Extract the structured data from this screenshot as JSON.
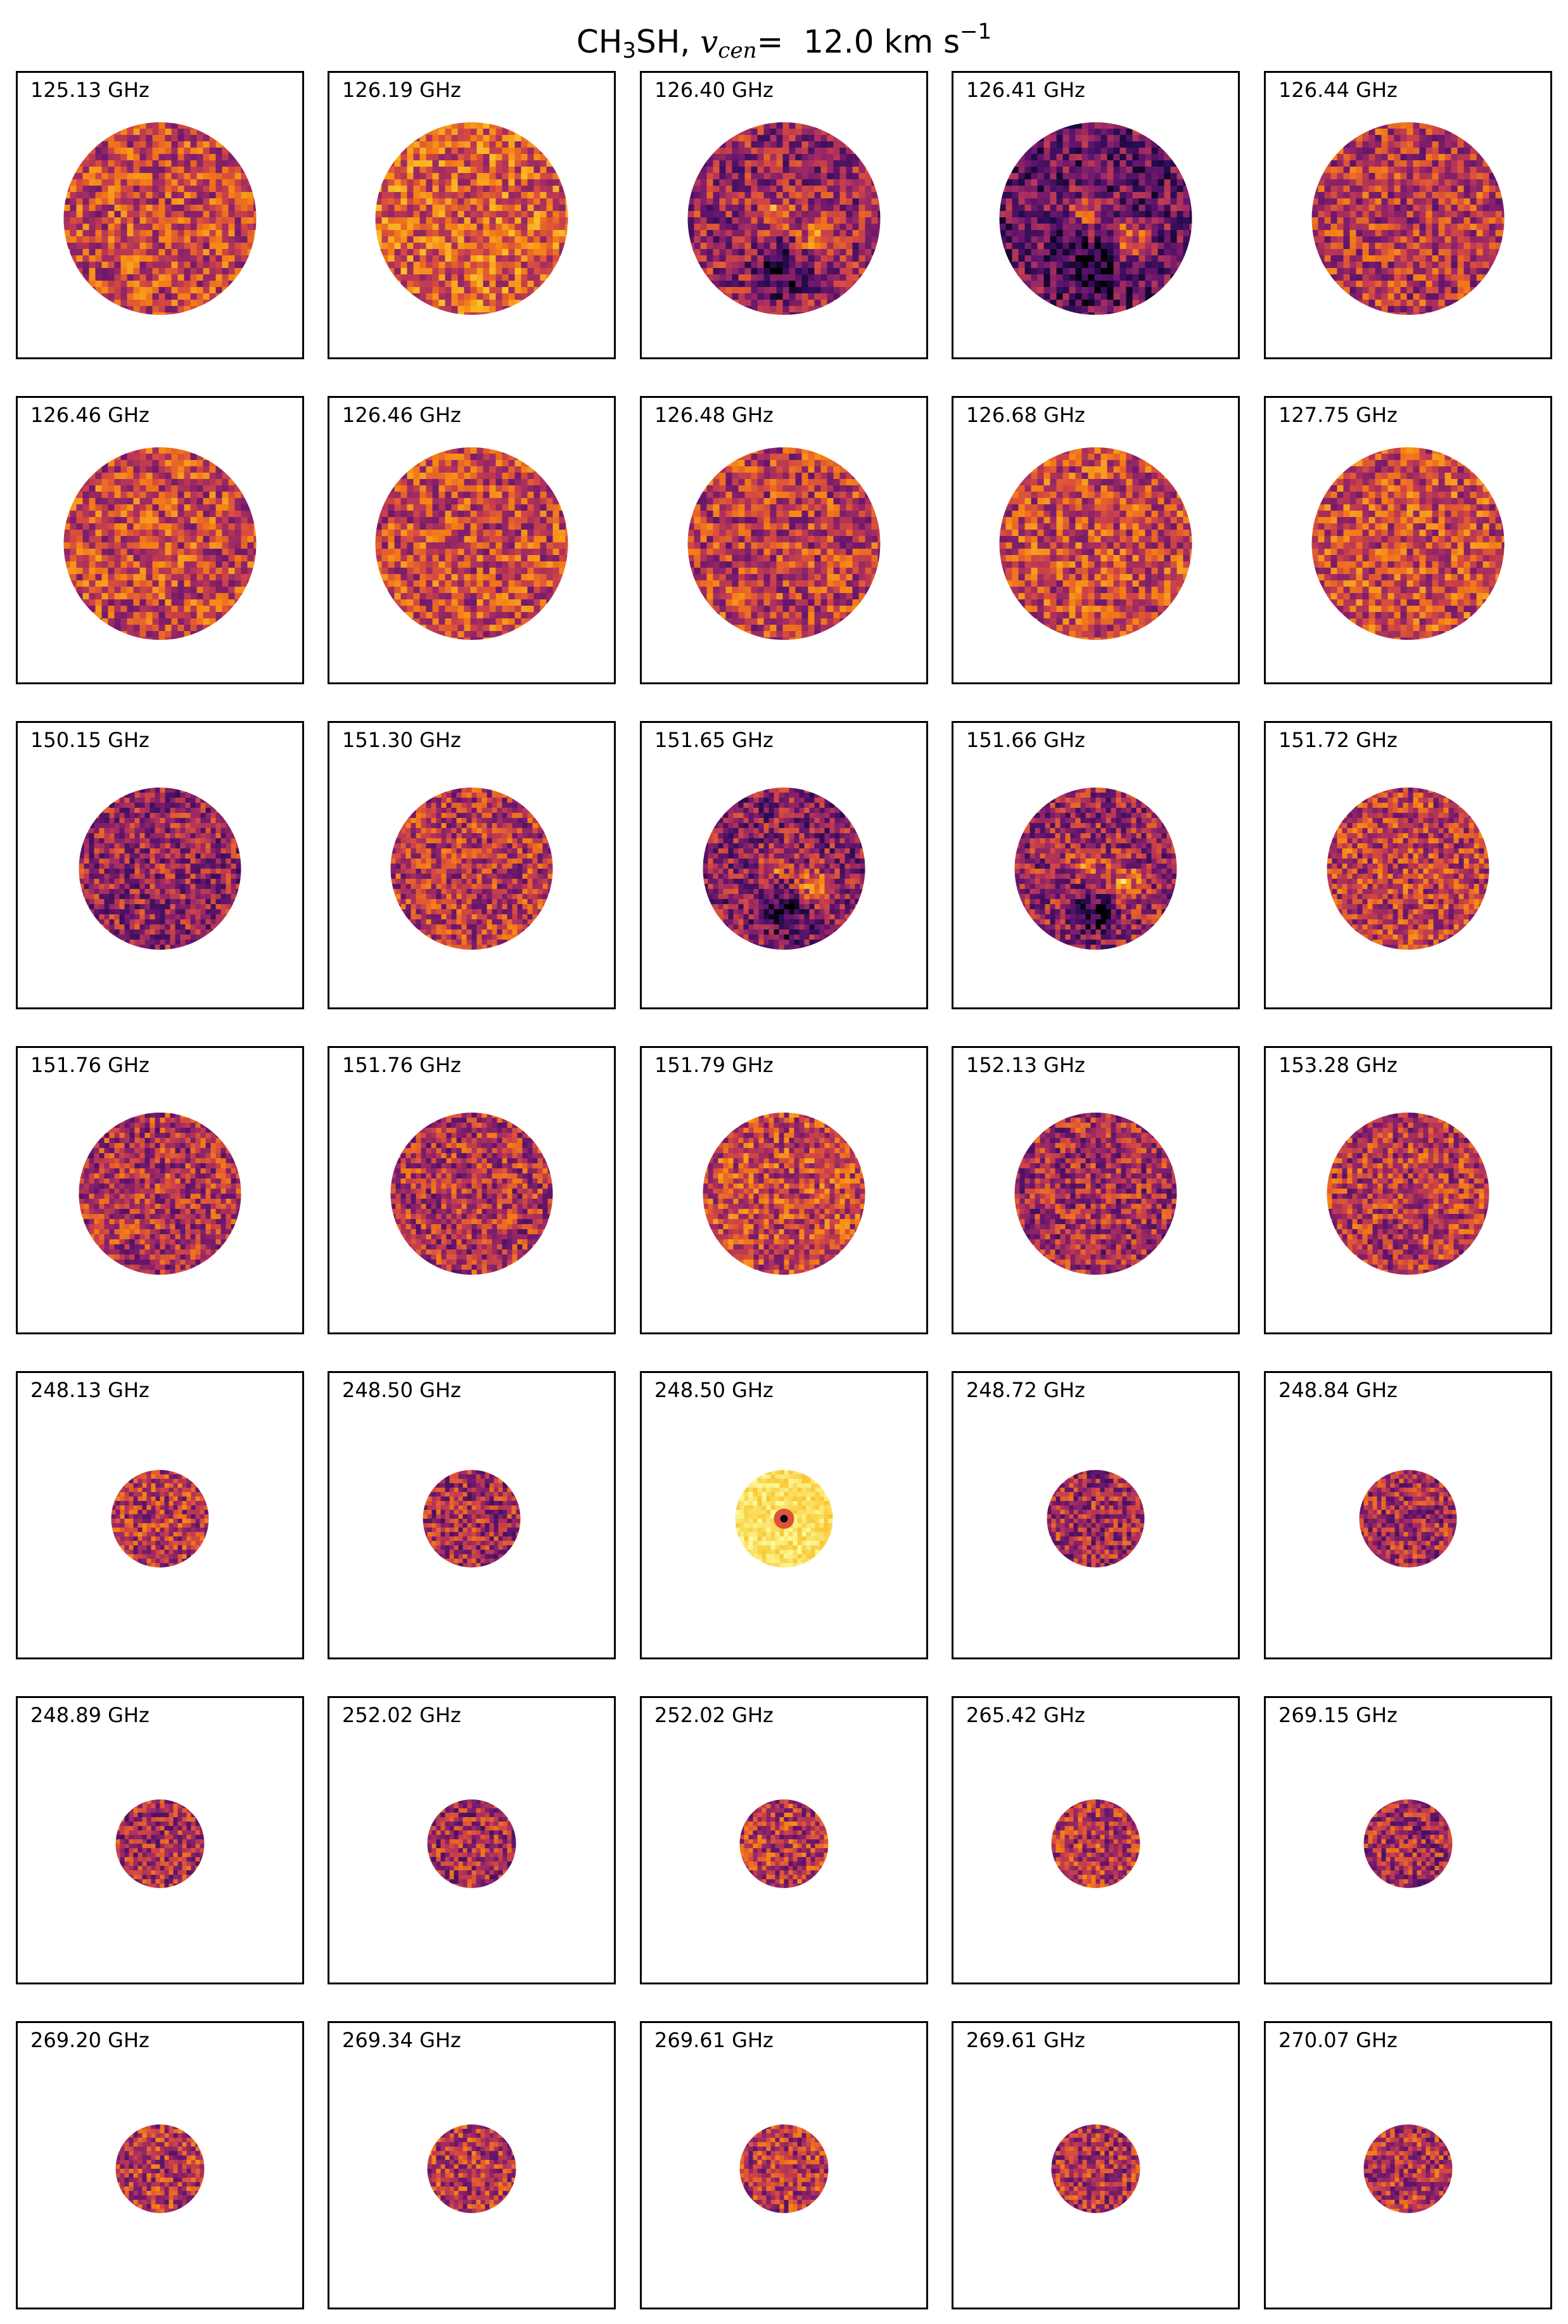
{
  "title": {
    "species_main": "CH",
    "species_sub": "3",
    "species_tail": "SH,",
    "velocity_symbol": "v",
    "velocity_sub": "cen",
    "equals": "=",
    "value": "12.0",
    "unit": "km s",
    "unit_exponent": "−1"
  },
  "colormap": "inferno",
  "colors": {
    "dark": "#3d0f5e",
    "mid": "#b8366a",
    "orange": "#e45a31",
    "bright": "#f9b924",
    "pale": "#f3e483",
    "frame": "#000000"
  },
  "chart_data": {
    "type": "heatmap",
    "rows": 7,
    "cols": 5,
    "panels": [
      {
        "label": "125.13 GHz",
        "mean": 0.55,
        "features": false
      },
      {
        "label": "126.19 GHz",
        "mean": 0.62,
        "features": false
      },
      {
        "label": "126.40 GHz",
        "mean": 0.42,
        "features": true
      },
      {
        "label": "126.41 GHz",
        "mean": 0.3,
        "features": true
      },
      {
        "label": "126.44 GHz",
        "mean": 0.5,
        "features": false
      },
      {
        "label": "126.46 GHz",
        "mean": 0.55,
        "features": false
      },
      {
        "label": "126.46 GHz",
        "mean": 0.55,
        "features": false
      },
      {
        "label": "126.48 GHz",
        "mean": 0.52,
        "features": false
      },
      {
        "label": "126.68 GHz",
        "mean": 0.55,
        "features": false
      },
      {
        "label": "127.75 GHz",
        "mean": 0.56,
        "features": false
      },
      {
        "label": "150.15 GHz",
        "mean": 0.42,
        "features": false
      },
      {
        "label": "151.30 GHz",
        "mean": 0.5,
        "features": false
      },
      {
        "label": "151.65 GHz",
        "mean": 0.38,
        "features": true
      },
      {
        "label": "151.66 GHz",
        "mean": 0.42,
        "features": true
      },
      {
        "label": "151.72 GHz",
        "mean": 0.52,
        "features": false
      },
      {
        "label": "151.76 GHz",
        "mean": 0.48,
        "features": false
      },
      {
        "label": "151.76 GHz",
        "mean": 0.48,
        "features": false
      },
      {
        "label": "151.79 GHz",
        "mean": 0.55,
        "features": false
      },
      {
        "label": "152.13 GHz",
        "mean": 0.45,
        "features": false
      },
      {
        "label": "153.28 GHz",
        "mean": 0.5,
        "features": false
      },
      {
        "label": "248.13 GHz",
        "mean": 0.5,
        "features": false
      },
      {
        "label": "248.50 GHz",
        "mean": 0.45,
        "features": false
      },
      {
        "label": "248.50 GHz",
        "mean": 0.93,
        "features": false,
        "central_source": true
      },
      {
        "label": "248.72 GHz",
        "mean": 0.45,
        "features": false
      },
      {
        "label": "248.84 GHz",
        "mean": 0.45,
        "features": false
      },
      {
        "label": "248.89 GHz",
        "mean": 0.45,
        "features": false
      },
      {
        "label": "252.02 GHz",
        "mean": 0.45,
        "features": false
      },
      {
        "label": "252.02 GHz",
        "mean": 0.5,
        "features": false
      },
      {
        "label": "265.42 GHz",
        "mean": 0.5,
        "features": false
      },
      {
        "label": "269.15 GHz",
        "mean": 0.45,
        "features": false
      },
      {
        "label": "269.20 GHz",
        "mean": 0.5,
        "features": false
      },
      {
        "label": "269.34 GHz",
        "mean": 0.5,
        "features": false
      },
      {
        "label": "269.61 GHz",
        "mean": 0.5,
        "features": false
      },
      {
        "label": "269.61 GHz",
        "mean": 0.48,
        "features": false
      },
      {
        "label": "270.07 GHz",
        "mean": 0.48,
        "features": false
      }
    ]
  }
}
